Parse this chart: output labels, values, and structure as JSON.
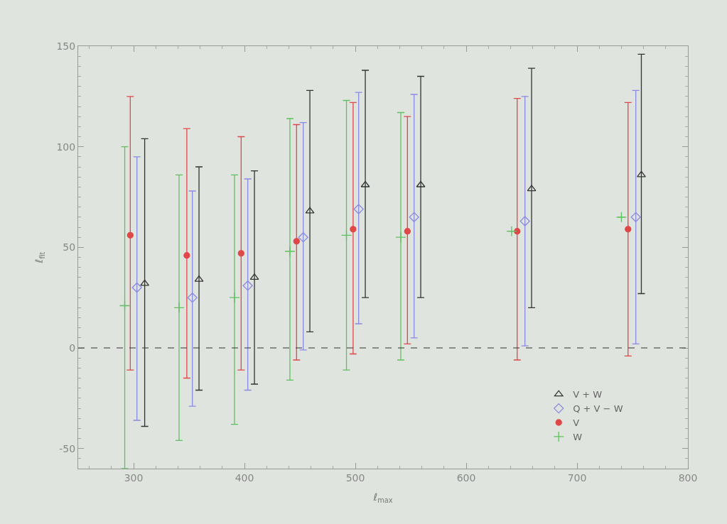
{
  "chart_data": {
    "type": "scatter",
    "xlabel": "ℓ$_{max}$",
    "ylabel": "ℓ$_{fit}$",
    "xlim": [
      250,
      800
    ],
    "xticks": [
      300,
      400,
      500,
      600,
      700,
      800
    ],
    "ylim": [
      -60,
      150
    ],
    "yticks": [
      -50,
      0,
      50,
      100,
      150
    ],
    "grid": false,
    "legend": "bottom right",
    "ref_lines": [
      {
        "axis": "y",
        "value": 0,
        "line_style": "dashed",
        "color": "#333333"
      }
    ],
    "series": [
      {
        "name": "V + W",
        "color": "#333333",
        "marker": "triangle",
        "x": [
          310,
          359,
          409,
          459,
          509,
          559,
          659,
          758
        ],
        "values": [
          32,
          34,
          35,
          68,
          81,
          81,
          79,
          86
        ],
        "errors": [
          [
            -39,
            104
          ],
          [
            -21,
            90
          ],
          [
            -18,
            88
          ],
          [
            8,
            128
          ],
          [
            25,
            138
          ],
          [
            25,
            135
          ],
          [
            20,
            139
          ],
          [
            27,
            146
          ]
        ]
      },
      {
        "name": "Q + V − W",
        "color": "#8a8ae0",
        "marker": "diamond",
        "x": [
          303,
          353,
          403,
          453,
          503,
          553,
          653,
          753
        ],
        "values": [
          30,
          25,
          31,
          55,
          69,
          65,
          63,
          65
        ],
        "errors": [
          [
            -36,
            95
          ],
          [
            -29,
            78
          ],
          [
            -21,
            84
          ],
          [
            -1,
            112
          ],
          [
            12,
            127
          ],
          [
            5,
            126
          ],
          [
            1,
            125
          ],
          [
            2,
            128
          ]
        ]
      },
      {
        "name": "V",
        "color": "#e04848",
        "marker": "circle",
        "x": [
          297,
          348,
          397,
          447,
          498,
          547,
          646,
          746
        ],
        "values": [
          56,
          46,
          47,
          53,
          59,
          58,
          58,
          59
        ],
        "errors": [
          [
            -11,
            125
          ],
          [
            -15,
            109
          ],
          [
            -11,
            105
          ],
          [
            -6,
            111
          ],
          [
            -3,
            122
          ],
          [
            2,
            115
          ],
          [
            -6,
            124
          ],
          [
            -4,
            122
          ]
        ]
      },
      {
        "name": "W",
        "color": "#60c060",
        "marker": "cross",
        "x": [
          292,
          341,
          391,
          441,
          492,
          541,
          641,
          740
        ],
        "values": [
          21,
          20,
          25,
          48,
          56,
          55,
          58,
          65
        ],
        "errors": [
          [
            -60,
            100
          ],
          [
            -46,
            86
          ],
          [
            -38,
            86
          ],
          [
            -16,
            114
          ],
          [
            -11,
            123
          ],
          [
            -6,
            117
          ],
          null,
          null
        ]
      }
    ]
  }
}
